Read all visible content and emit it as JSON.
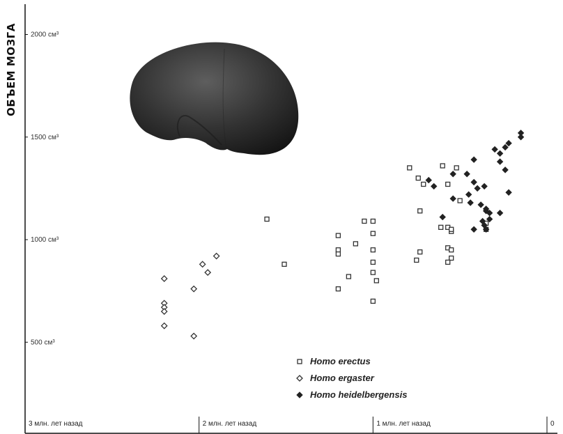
{
  "chart_data": {
    "type": "scatter",
    "ylabel": "ОБЪЕМ МОЗГА",
    "xlabel": "",
    "y_ticks": [
      {
        "value": 2000,
        "label": "2000 см³"
      },
      {
        "value": 1500,
        "label": "1500 см³"
      },
      {
        "value": 1000,
        "label": "1000 см³"
      },
      {
        "value": 500,
        "label": "500 см³"
      }
    ],
    "x_ticks": [
      {
        "value": 3.0,
        "label": "3 млн. лет назад"
      },
      {
        "value": 2.0,
        "label": "2 млн. лет назад"
      },
      {
        "value": 1.0,
        "label": "1 млн. лет назад"
      },
      {
        "value": 0.0,
        "label": "0"
      }
    ],
    "xlim": [
      3.0,
      0.0
    ],
    "ylim": [
      380,
      2150
    ],
    "grid": false,
    "legend_position": "bottom-center",
    "illustration": "brain-icon",
    "series": [
      {
        "name": "Homo erectus",
        "marker": "square-open",
        "color": "#333333",
        "points": [
          [
            1.61,
            1100
          ],
          [
            1.51,
            880
          ],
          [
            1.2,
            1020
          ],
          [
            1.2,
            760
          ],
          [
            1.2,
            950
          ],
          [
            1.2,
            930
          ],
          [
            1.14,
            820
          ],
          [
            1.1,
            980
          ],
          [
            1.05,
            1090
          ],
          [
            1.0,
            1090
          ],
          [
            1.0,
            1030
          ],
          [
            1.0,
            950
          ],
          [
            1.0,
            890
          ],
          [
            1.0,
            840
          ],
          [
            0.98,
            800
          ],
          [
            1.0,
            700
          ],
          [
            0.79,
            1350
          ],
          [
            0.74,
            1300
          ],
          [
            0.71,
            1270
          ],
          [
            0.73,
            1140
          ],
          [
            0.75,
            900
          ],
          [
            0.73,
            940
          ],
          [
            0.6,
            1360
          ],
          [
            0.57,
            1270
          ],
          [
            0.61,
            1060
          ],
          [
            0.57,
            1060
          ],
          [
            0.55,
            1040
          ],
          [
            0.55,
            1050
          ],
          [
            0.57,
            960
          ],
          [
            0.55,
            950
          ],
          [
            0.55,
            910
          ],
          [
            0.57,
            890
          ],
          [
            0.52,
            1350
          ],
          [
            0.5,
            1190
          ],
          [
            0.35,
            1050
          ],
          [
            0.35,
            1080
          ]
        ]
      },
      {
        "name": "Homo ergaster",
        "marker": "diamond-open",
        "color": "#333333",
        "points": [
          [
            2.2,
            810
          ],
          [
            2.2,
            690
          ],
          [
            2.2,
            670
          ],
          [
            2.2,
            650
          ],
          [
            2.2,
            580
          ],
          [
            2.03,
            760
          ],
          [
            1.98,
            880
          ],
          [
            1.95,
            840
          ],
          [
            1.9,
            920
          ],
          [
            2.03,
            530
          ]
        ]
      },
      {
        "name": "Homo heidelbergensis",
        "marker": "diamond-filled",
        "color": "#222222",
        "points": [
          [
            0.15,
            1520
          ],
          [
            0.15,
            1500
          ],
          [
            0.22,
            1470
          ],
          [
            0.24,
            1450
          ],
          [
            0.27,
            1420
          ],
          [
            0.3,
            1440
          ],
          [
            0.27,
            1380
          ],
          [
            0.42,
            1390
          ],
          [
            0.24,
            1340
          ],
          [
            0.46,
            1320
          ],
          [
            0.54,
            1320
          ],
          [
            0.68,
            1290
          ],
          [
            0.65,
            1260
          ],
          [
            0.42,
            1280
          ],
          [
            0.4,
            1250
          ],
          [
            0.45,
            1220
          ],
          [
            0.54,
            1200
          ],
          [
            0.36,
            1260
          ],
          [
            0.44,
            1180
          ],
          [
            0.38,
            1170
          ],
          [
            0.35,
            1150
          ],
          [
            0.35,
            1140
          ],
          [
            0.33,
            1130
          ],
          [
            0.27,
            1130
          ],
          [
            0.33,
            1100
          ],
          [
            0.37,
            1090
          ],
          [
            0.36,
            1070
          ],
          [
            0.35,
            1050
          ],
          [
            0.42,
            1050
          ],
          [
            0.22,
            1230
          ],
          [
            0.6,
            1110
          ]
        ]
      }
    ]
  }
}
